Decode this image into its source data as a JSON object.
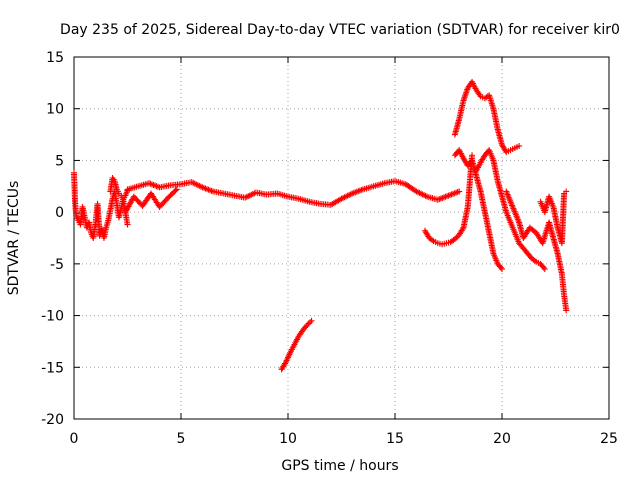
{
  "chart_data": {
    "type": "scatter",
    "title": "Day 235 of 2025, Sidereal Day-to-day VTEC variation (SDTVAR) for receiver kir0",
    "xlabel": "GPS time / hours",
    "ylabel": "SDTVAR / TECUs",
    "xlim": [
      0,
      25
    ],
    "ylim": [
      -20,
      15
    ],
    "xticks": [
      0,
      5,
      10,
      15,
      20,
      25
    ],
    "yticks": [
      -20,
      -15,
      -10,
      -5,
      0,
      5,
      10,
      15
    ],
    "grid": true,
    "marker": "+",
    "color": "#ff0000",
    "series": [
      {
        "name": "early-cluster",
        "x": [
          0.0,
          0.05,
          0.1,
          0.2,
          0.3,
          0.4,
          0.5,
          0.6,
          0.7,
          0.8,
          0.9,
          1.0,
          1.1,
          1.2,
          1.3,
          1.4,
          1.5,
          1.6,
          1.7,
          1.8,
          1.9,
          2.0,
          2.1,
          2.2,
          2.3,
          2.4,
          2.5
        ],
        "y": [
          3.8,
          1.0,
          -0.3,
          -0.8,
          -1.2,
          0.5,
          -0.5,
          -1.5,
          -1.0,
          -2.0,
          -2.5,
          -1.2,
          0.8,
          -2.3,
          -1.6,
          -2.5,
          -1.5,
          -0.8,
          0.2,
          1.3,
          2.0,
          0.8,
          -0.5,
          0.3,
          1.2,
          0.0,
          -1.2
        ]
      },
      {
        "name": "upper-cluster",
        "x": [
          1.7,
          1.8,
          1.9,
          2.0,
          2.1,
          2.2,
          2.3,
          2.4,
          2.5
        ],
        "y": [
          2.0,
          3.3,
          3.0,
          2.2,
          1.8,
          1.6,
          1.2,
          1.6,
          2.1
        ]
      },
      {
        "name": "main-band",
        "x": [
          2.5,
          3.0,
          3.5,
          4.0,
          4.5,
          5.0,
          5.5,
          6.0,
          6.5,
          7.0,
          7.5,
          8.0,
          8.5,
          9.0,
          9.5,
          10.0,
          10.5,
          11.0,
          11.5,
          12.0,
          12.5,
          13.0,
          13.5,
          14.0,
          14.5,
          15.0,
          15.5,
          16.0,
          16.5,
          17.0,
          17.5,
          18.0
        ],
        "y": [
          2.2,
          2.5,
          2.8,
          2.4,
          2.6,
          2.7,
          2.9,
          2.4,
          2.0,
          1.8,
          1.6,
          1.4,
          1.9,
          1.7,
          1.8,
          1.5,
          1.3,
          1.0,
          0.8,
          0.7,
          1.3,
          1.8,
          2.2,
          2.5,
          2.8,
          3.0,
          2.7,
          2.0,
          1.5,
          1.2,
          1.6,
          2.0
        ]
      },
      {
        "name": "secondary-band",
        "x": [
          2.4,
          2.8,
          3.2,
          3.6,
          4.0,
          4.4,
          4.8
        ],
        "y": [
          0.0,
          1.5,
          0.6,
          1.8,
          0.5,
          1.4,
          2.2
        ]
      },
      {
        "name": "negative-segment",
        "x": [
          9.7,
          9.9,
          10.1,
          10.3,
          10.5,
          10.7,
          10.9,
          11.1
        ],
        "y": [
          -15.2,
          -14.5,
          -13.6,
          -12.8,
          -12.0,
          -11.4,
          -10.9,
          -10.5
        ]
      },
      {
        "name": "dip-segment",
        "x": [
          16.4,
          16.6,
          16.8,
          17.0,
          17.2,
          17.4,
          17.6,
          17.8,
          18.0,
          18.2,
          18.4,
          18.5,
          18.6
        ],
        "y": [
          -1.8,
          -2.5,
          -2.8,
          -3.0,
          -3.1,
          -3.0,
          -2.9,
          -2.6,
          -2.2,
          -1.5,
          0.5,
          3.0,
          5.5
        ]
      },
      {
        "name": "high-peak",
        "x": [
          17.8,
          18.0,
          18.2,
          18.4,
          18.6,
          18.8,
          19.0,
          19.2,
          19.4,
          19.6,
          19.8,
          20.0,
          20.2,
          20.4,
          20.6,
          20.8
        ],
        "y": [
          7.5,
          9.0,
          10.8,
          12.0,
          12.6,
          11.8,
          11.2,
          11.0,
          11.3,
          10.0,
          8.0,
          6.5,
          5.8,
          6.0,
          6.2,
          6.4
        ]
      },
      {
        "name": "descending-1",
        "x": [
          17.8,
          18.0,
          18.2,
          18.4,
          18.6,
          18.8,
          19.0,
          19.2,
          19.4,
          19.6,
          19.8,
          20.0
        ],
        "y": [
          5.5,
          6.0,
          5.2,
          4.5,
          5.0,
          3.5,
          2.0,
          0.0,
          -2.0,
          -4.0,
          -5.0,
          -5.5
        ]
      },
      {
        "name": "descending-2",
        "x": [
          18.8,
          19.0,
          19.2,
          19.4,
          19.6,
          19.8,
          20.0,
          20.2,
          20.4,
          20.6,
          20.8,
          21.0,
          21.2,
          21.4,
          21.6,
          21.8,
          22.0
        ],
        "y": [
          4.0,
          4.8,
          5.5,
          6.0,
          5.0,
          3.0,
          1.5,
          0.0,
          -1.0,
          -2.0,
          -3.0,
          -3.5,
          -4.0,
          -4.5,
          -4.8,
          -5.0,
          -5.5
        ]
      },
      {
        "name": "late-cluster",
        "x": [
          20.2,
          20.5,
          20.8,
          21.0,
          21.3,
          21.6,
          21.9,
          22.2,
          22.4,
          22.6,
          22.8,
          22.9,
          23.0
        ],
        "y": [
          2.0,
          0.5,
          -1.0,
          -2.5,
          -1.5,
          -2.0,
          -3.0,
          -1.0,
          -2.5,
          -4.0,
          -6.0,
          -8.0,
          -9.5
        ]
      },
      {
        "name": "late-upper",
        "x": [
          21.8,
          22.0,
          22.2,
          22.4,
          22.6,
          22.8,
          22.9,
          23.0
        ],
        "y": [
          1.0,
          0.0,
          1.5,
          0.5,
          -1.5,
          -3.0,
          1.8,
          2.0
        ]
      }
    ]
  }
}
